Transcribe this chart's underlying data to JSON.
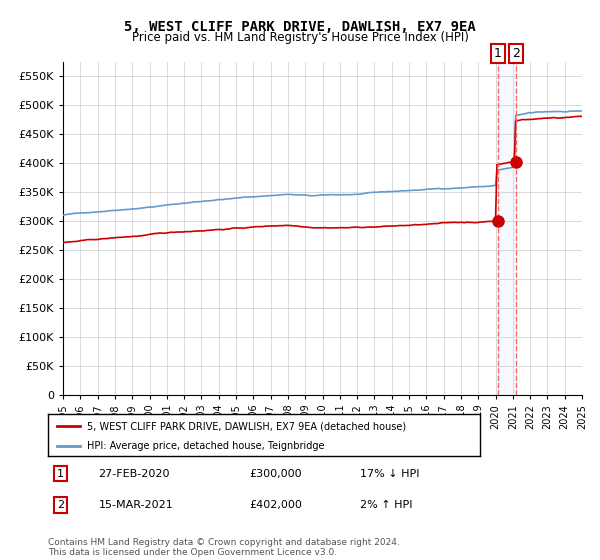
{
  "title": "5, WEST CLIFF PARK DRIVE, DAWLISH, EX7 9EA",
  "subtitle": "Price paid vs. HM Land Registry's House Price Index (HPI)",
  "legend_line1": "5, WEST CLIFF PARK DRIVE, DAWLISH, EX7 9EA (detached house)",
  "legend_line2": "HPI: Average price, detached house, Teignbridge",
  "footer": "Contains HM Land Registry data © Crown copyright and database right 2024.\nThis data is licensed under the Open Government Licence v3.0.",
  "transaction1_label": "1",
  "transaction1_date": "27-FEB-2020",
  "transaction1_price": "£300,000",
  "transaction1_hpi": "17% ↓ HPI",
  "transaction2_label": "2",
  "transaction2_date": "15-MAR-2021",
  "transaction2_price": "£402,000",
  "transaction2_hpi": "2% ↑ HPI",
  "hpi_color": "#6699cc",
  "price_color": "#cc0000",
  "marker_color": "#cc0000",
  "highlight_color": "#ddeeff",
  "dashed_color": "#ff6666",
  "ylim_min": 0,
  "ylim_max": 575000,
  "start_year": 1995,
  "end_year": 2025,
  "transaction1_year": 2020.15,
  "transaction2_year": 2021.2,
  "transaction1_price_val": 300000,
  "transaction2_price_val": 402000
}
